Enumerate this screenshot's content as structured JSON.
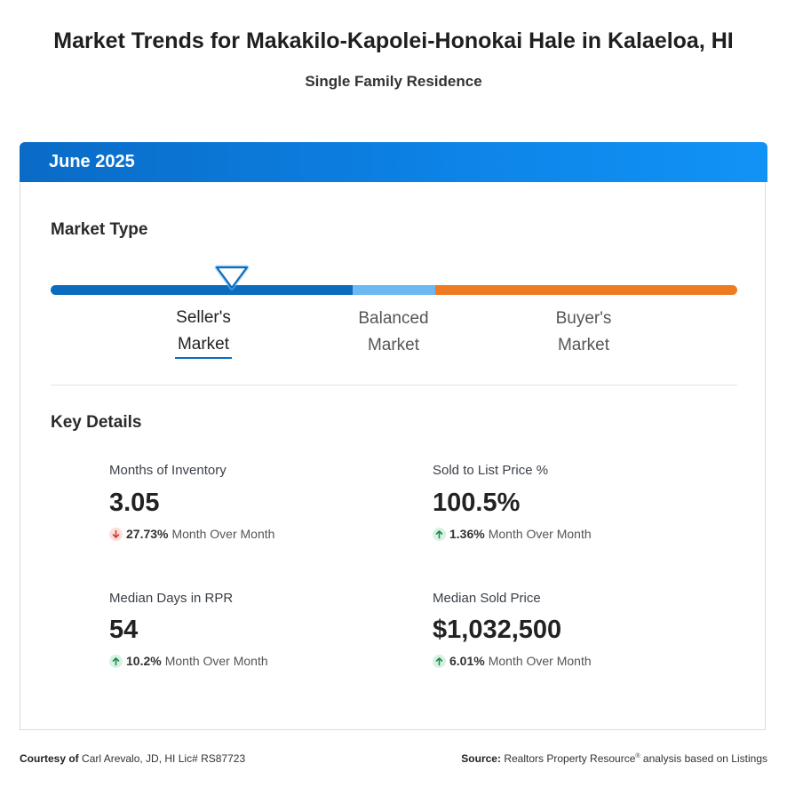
{
  "header": {
    "title": "Market Trends for Makakilo-Kapolei-Honokai Hale in Kalaeloa, HI",
    "subtitle": "Single Family Residence"
  },
  "card": {
    "period": "June 2025"
  },
  "market_type": {
    "title": "Market Type",
    "current": "seller",
    "labels": {
      "seller_line1": "Seller's",
      "seller_line2": "Market",
      "balanced_line1": "Balanced",
      "balanced_line2": "Market",
      "buyer_line1": "Buyer's",
      "buyer_line2": "Market"
    },
    "colors": {
      "seller": "#0b6cbf",
      "balanced": "#6bb8f2",
      "buyer": "#ef7a22"
    }
  },
  "key_details": {
    "title": "Key Details",
    "stats": [
      {
        "label": "Months of Inventory",
        "value": "3.05",
        "change": "27.73%",
        "direction": "down",
        "period": "Month Over Month"
      },
      {
        "label": "Sold to List Price %",
        "value": "100.5%",
        "change": "1.36%",
        "direction": "up",
        "period": "Month Over Month"
      },
      {
        "label": "Median Days in RPR",
        "value": "54",
        "change": "10.2%",
        "direction": "up",
        "period": "Month Over Month"
      },
      {
        "label": "Median Sold Price",
        "value": "$1,032,500",
        "change": "6.01%",
        "direction": "up",
        "period": "Month Over Month"
      }
    ]
  },
  "footer": {
    "courtesy_label": "Courtesy of",
    "courtesy_text": "Carl Arevalo, JD, HI Lic# RS87723",
    "source_label": "Source:",
    "source_name": "Realtors Property Resource",
    "source_mark": "®",
    "source_text": "analysis based on Listings"
  }
}
